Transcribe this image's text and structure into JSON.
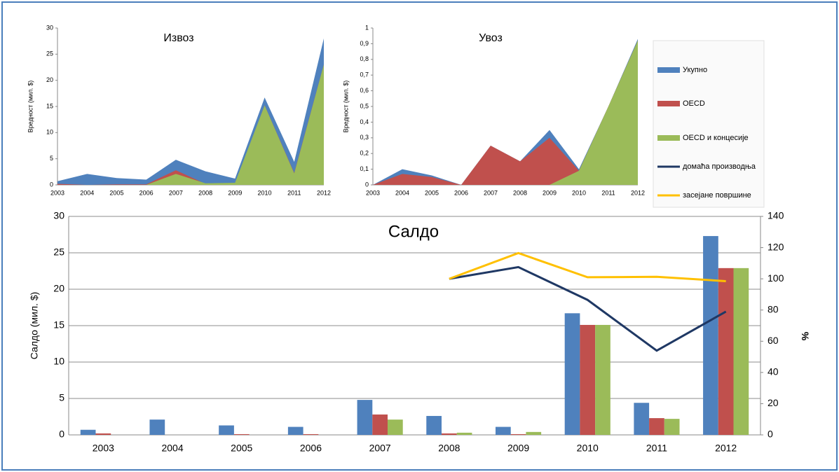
{
  "chart_data": [
    {
      "type": "area",
      "title": "Извоз",
      "y_label": "Вредност (мил. $)",
      "categories": [
        "2003",
        "2004",
        "2005",
        "2006",
        "2007",
        "2008",
        "2009",
        "2010",
        "2011",
        "2012"
      ],
      "series": [
        {
          "color": "#4f81bd",
          "values": [
            0.7,
            2.1,
            1.3,
            1.0,
            4.8,
            2.6,
            1.2,
            16.7,
            4.4,
            28
          ]
        },
        {
          "color": "#c0504d",
          "values": [
            0.2,
            0,
            0.1,
            0.1,
            2.8,
            0.2,
            0.2,
            15.2,
            2.3,
            23
          ]
        },
        {
          "color": "#9bbb59",
          "values": [
            0,
            0,
            0,
            0,
            2.1,
            0.3,
            0.4,
            15.2,
            2.2,
            23
          ]
        }
      ],
      "ylim": [
        0,
        30
      ],
      "yticks": [
        0,
        5,
        10,
        15,
        20,
        25,
        30
      ],
      "grid": false
    },
    {
      "type": "area",
      "title": "Увоз",
      "y_label": "Вредност (мил. $)",
      "categories": [
        "2003",
        "2004",
        "2005",
        "2006",
        "2007",
        "2008",
        "2009",
        "2010",
        "2011",
        "2012"
      ],
      "series": [
        {
          "color": "#4f81bd",
          "values": [
            0,
            0.1,
            0.06,
            0,
            0.25,
            0.15,
            0.35,
            0.1,
            0.5,
            0.93
          ]
        },
        {
          "color": "#c0504d",
          "values": [
            0,
            0.07,
            0.05,
            0,
            0.25,
            0.15,
            0.3,
            0.09,
            0.5,
            0.92
          ]
        },
        {
          "color": "#9bbb59",
          "values": [
            0,
            0,
            0,
            0,
            0,
            0,
            0,
            0.09,
            0.5,
            0.92
          ]
        }
      ],
      "ylim": [
        0,
        1
      ],
      "yticks": [
        0,
        {
          "value": 0.1,
          "label": "0,1"
        },
        {
          "value": 0.2,
          "label": "0,2"
        },
        {
          "value": 0.3,
          "label": "0,3"
        },
        {
          "value": 0.4,
          "label": "0,4"
        },
        {
          "value": 0.5,
          "label": "0,5"
        },
        {
          "value": 0.6,
          "label": "0,6"
        },
        {
          "value": 0.7,
          "label": "0,7"
        },
        {
          "value": 0.8,
          "label": "0,8"
        },
        {
          "value": 0.9,
          "label": "0,9"
        },
        1
      ],
      "grid": false
    },
    {
      "type": "bar",
      "title": "Салдо",
      "y_label": "Салдо (мил. $)",
      "y2_label": "%",
      "categories": [
        "2003",
        "2004",
        "2005",
        "2006",
        "2007",
        "2008",
        "2009",
        "2010",
        "2011",
        "2012"
      ],
      "series": [
        {
          "name": "Укупно",
          "color": "#4f81bd",
          "values": [
            0.7,
            2.1,
            1.3,
            1.1,
            4.8,
            2.6,
            1.1,
            16.7,
            4.4,
            27.3
          ]
        },
        {
          "name": "OECD",
          "color": "#c0504d",
          "values": [
            0.2,
            0,
            0.1,
            0.1,
            2.8,
            0.2,
            0.1,
            15.1,
            2.3,
            22.9
          ]
        },
        {
          "name": "OECD и концесије",
          "color": "#9bbb59",
          "values": [
            0,
            0,
            0,
            0,
            2.1,
            0.3,
            0.4,
            15.1,
            2.2,
            22.9
          ]
        },
        {
          "name": "домаћа производња",
          "color": "#1f3864",
          "type": "line",
          "axis": "y2",
          "values": [
            null,
            null,
            null,
            null,
            null,
            100,
            107.5,
            86.5,
            54,
            79
          ]
        },
        {
          "name": "засејане површине",
          "color": "#ffc000",
          "type": "line",
          "axis": "y2",
          "values": [
            null,
            null,
            null,
            null,
            null,
            100,
            116.5,
            101,
            101.3,
            98.5
          ]
        }
      ],
      "ylim": [
        0,
        30
      ],
      "yticks": [
        0,
        5,
        10,
        15,
        20,
        25,
        30
      ],
      "y2lim": [
        0,
        140
      ],
      "y2ticks": [
        0,
        20,
        40,
        60,
        80,
        100,
        120,
        140
      ],
      "grid": true
    }
  ]
}
